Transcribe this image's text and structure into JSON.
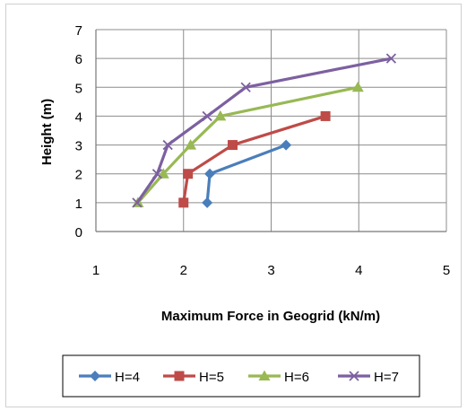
{
  "chart_data": {
    "type": "line",
    "title": "",
    "xlabel": "Maximum Force in Geogrid (kN/m)",
    "ylabel": "Height (m)",
    "xlim": [
      1,
      5
    ],
    "ylim": [
      0,
      7
    ],
    "xticks": [
      "1",
      "2",
      "3",
      "4",
      "5"
    ],
    "yticks": [
      "0",
      "1",
      "2",
      "3",
      "4",
      "5",
      "6",
      "7"
    ],
    "grid": "horizontal and vertical",
    "legend_position": "bottom",
    "series": [
      {
        "name": "H=4",
        "color": "#4a7ebb",
        "marker": "diamond",
        "points": [
          [
            2.27,
            1
          ],
          [
            2.3,
            2
          ],
          [
            3.17,
            3
          ]
        ]
      },
      {
        "name": "H=5",
        "color": "#be4b48",
        "marker": "square",
        "points": [
          [
            2.0,
            1
          ],
          [
            2.05,
            2
          ],
          [
            2.56,
            3
          ],
          [
            3.62,
            4
          ]
        ]
      },
      {
        "name": "H=6",
        "color": "#98b954",
        "marker": "triangle",
        "points": [
          [
            1.48,
            1
          ],
          [
            1.77,
            2
          ],
          [
            2.08,
            3
          ],
          [
            2.42,
            4
          ],
          [
            3.99,
            5
          ]
        ]
      },
      {
        "name": "H=7",
        "color": "#7d60a0",
        "marker": "x",
        "points": [
          [
            1.47,
            1
          ],
          [
            1.7,
            2
          ],
          [
            1.82,
            3
          ],
          [
            2.27,
            4
          ],
          [
            2.71,
            5
          ],
          [
            4.37,
            6
          ]
        ]
      }
    ]
  }
}
